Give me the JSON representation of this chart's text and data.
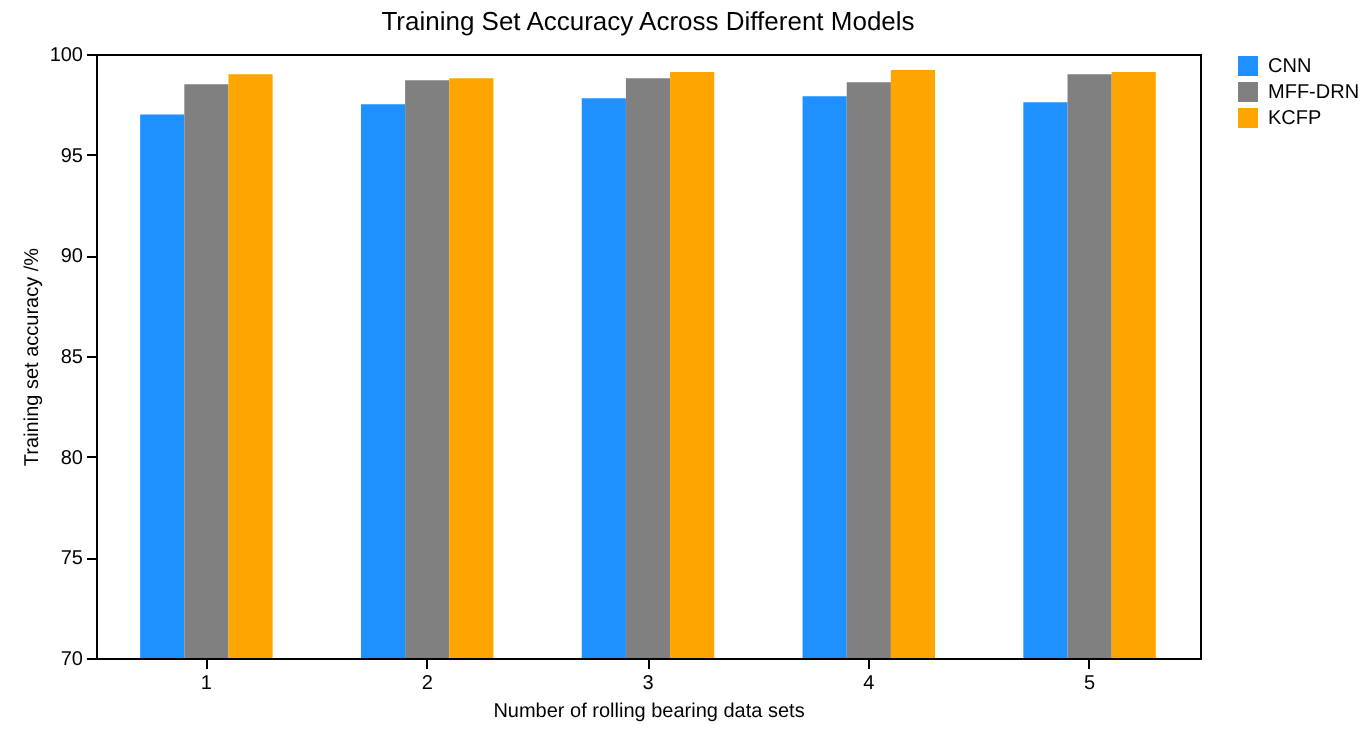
{
  "chart_data": {
    "type": "bar",
    "title": "Training Set Accuracy Across Different Models",
    "xlabel": "Number of rolling bearing data sets",
    "ylabel": "Training set accuracy /%",
    "categories": [
      "1",
      "2",
      "3",
      "4",
      "5"
    ],
    "series": [
      {
        "name": "CNN",
        "color": "#1e90ff",
        "values": [
          97.0,
          97.5,
          97.8,
          97.9,
          97.6
        ]
      },
      {
        "name": "MFF-DRN",
        "color": "#808080",
        "values": [
          98.5,
          98.7,
          98.8,
          98.6,
          99.0
        ]
      },
      {
        "name": "KCFP",
        "color": "#ffa500",
        "values": [
          99.0,
          98.8,
          99.1,
          99.2,
          99.1
        ]
      }
    ],
    "ylim": [
      70,
      100
    ],
    "yticks": [
      70,
      75,
      80,
      85,
      90,
      95,
      100
    ],
    "grid": false,
    "legend": "top right"
  }
}
